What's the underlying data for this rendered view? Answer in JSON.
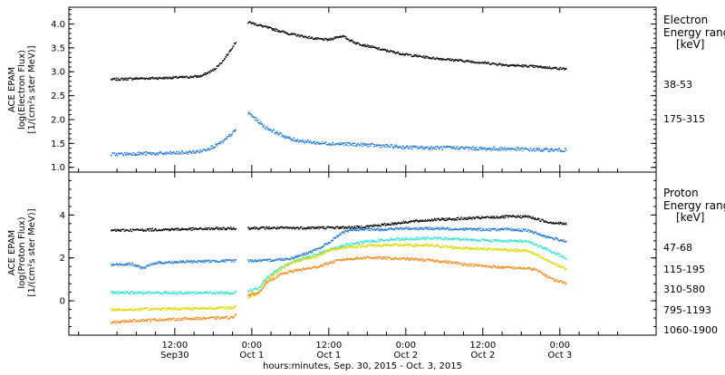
{
  "chart_data": [
    {
      "type": "scatter",
      "instrument": "ACE EPAM",
      "ylabel_line1": "ACE EPAM",
      "ylabel_line2": "log(Electron Flux)",
      "ylabel_line3": "[1/(cm²s ster MeV)]",
      "ylim": [
        0.9,
        4.35
      ],
      "yticks": [
        1.0,
        1.5,
        2.0,
        2.5,
        3.0,
        3.5,
        4.0
      ],
      "ytick_labels": [
        "1.0",
        "1.5",
        "2.0",
        "2.5",
        "3.0",
        "3.5",
        "4.0"
      ],
      "legend_title_line1": "Electron",
      "legend_title_line2": "Energy ranges",
      "legend_title_line3": "[keV]",
      "data_gap": [
        21.5,
        23.3
      ],
      "series": [
        {
          "name": "38-53",
          "color": "#000000",
          "points": [
            [
              2,
              2.85
            ],
            [
              6,
              2.87
            ],
            [
              10,
              2.88
            ],
            [
              14,
              2.9
            ],
            [
              16,
              2.92
            ],
            [
              18,
              3.05
            ],
            [
              19.5,
              3.25
            ],
            [
              21.5,
              3.65
            ],
            [
              23.4,
              4.05
            ],
            [
              26,
              3.95
            ],
            [
              30,
              3.8
            ],
            [
              34,
              3.7
            ],
            [
              36,
              3.68
            ],
            [
              37,
              3.73
            ],
            [
              38,
              3.76
            ],
            [
              40,
              3.62
            ],
            [
              44,
              3.48
            ],
            [
              48,
              3.37
            ],
            [
              52,
              3.3
            ],
            [
              56,
              3.25
            ],
            [
              60,
              3.2
            ],
            [
              64,
              3.15
            ],
            [
              68,
              3.12
            ],
            [
              70,
              3.1
            ],
            [
              73,
              3.07
            ]
          ]
        },
        {
          "name": "175-315",
          "color": "#1e78d2",
          "points": [
            [
              2,
              1.28
            ],
            [
              6,
              1.3
            ],
            [
              10,
              1.3
            ],
            [
              14,
              1.32
            ],
            [
              16,
              1.35
            ],
            [
              18,
              1.45
            ],
            [
              19.5,
              1.55
            ],
            [
              21.5,
              1.8
            ],
            [
              23.4,
              2.15
            ],
            [
              26,
              1.85
            ],
            [
              30,
              1.6
            ],
            [
              34,
              1.52
            ],
            [
              38,
              1.5
            ],
            [
              42,
              1.48
            ],
            [
              48,
              1.43
            ],
            [
              52,
              1.42
            ],
            [
              56,
              1.42
            ],
            [
              60,
              1.4
            ],
            [
              64,
              1.4
            ],
            [
              68,
              1.38
            ],
            [
              73,
              1.37
            ]
          ]
        }
      ]
    },
    {
      "type": "scatter",
      "instrument": "ACE EPAM",
      "ylabel_line1": "ACE EPAM",
      "ylabel_line2": "log(Proton Flux)",
      "ylabel_line3": "[1/(cm²s ster MeV)]",
      "ylim": [
        -1.6,
        6.0
      ],
      "yticks": [
        0,
        2,
        4
      ],
      "ytick_labels": [
        "0",
        "2",
        "4"
      ],
      "legend_title_line1": "Proton",
      "legend_title_line2": "Energy ranges",
      "legend_title_line3": "[keV]",
      "data_gap": [
        21.5,
        23.3
      ],
      "series": [
        {
          "name": "47-68",
          "color": "#000000",
          "points": [
            [
              2,
              3.3
            ],
            [
              10,
              3.35
            ],
            [
              21,
              3.4
            ],
            [
              23.4,
              3.42
            ],
            [
              30,
              3.42
            ],
            [
              40,
              3.45
            ],
            [
              44,
              3.55
            ],
            [
              48,
              3.7
            ],
            [
              52,
              3.8
            ],
            [
              56,
              3.85
            ],
            [
              60,
              3.9
            ],
            [
              64,
              3.95
            ],
            [
              67,
              3.95
            ],
            [
              70,
              3.7
            ],
            [
              73,
              3.6
            ]
          ]
        },
        {
          "name": "115-195",
          "color": "#1e78d2",
          "points": [
            [
              2,
              1.7
            ],
            [
              5,
              1.75
            ],
            [
              7,
              1.55
            ],
            [
              9,
              1.8
            ],
            [
              14,
              1.85
            ],
            [
              21,
              1.9
            ],
            [
              23.4,
              1.9
            ],
            [
              26,
              1.9
            ],
            [
              28,
              1.95
            ],
            [
              30,
              2.0
            ],
            [
              32,
              2.2
            ],
            [
              34,
              2.4
            ],
            [
              36,
              2.75
            ],
            [
              38,
              3.2
            ],
            [
              40,
              3.35
            ],
            [
              44,
              3.35
            ],
            [
              48,
              3.4
            ],
            [
              52,
              3.4
            ],
            [
              56,
              3.38
            ],
            [
              60,
              3.35
            ],
            [
              64,
              3.35
            ],
            [
              67,
              3.3
            ],
            [
              70,
              3.0
            ],
            [
              73,
              2.8
            ]
          ]
        },
        {
          "name": "310-580",
          "color": "#33e0d0",
          "points": [
            [
              2,
              0.4
            ],
            [
              10,
              0.4
            ],
            [
              21,
              0.4
            ],
            [
              23.4,
              0.5
            ],
            [
              25,
              0.6
            ],
            [
              26,
              1.0
            ],
            [
              28,
              1.5
            ],
            [
              30,
              1.8
            ],
            [
              34,
              2.2
            ],
            [
              38,
              2.6
            ],
            [
              42,
              2.8
            ],
            [
              46,
              2.9
            ],
            [
              52,
              2.95
            ],
            [
              56,
              2.9
            ],
            [
              60,
              2.85
            ],
            [
              64,
              2.82
            ],
            [
              67,
              2.8
            ],
            [
              70,
              2.4
            ],
            [
              73,
              2.0
            ]
          ]
        },
        {
          "name": "795-1193",
          "color": "#dada00",
          "points": [
            [
              2,
              -0.4
            ],
            [
              10,
              -0.35
            ],
            [
              21,
              -0.3
            ],
            [
              23.4,
              0.2
            ],
            [
              25,
              0.4
            ],
            [
              26,
              0.9
            ],
            [
              28,
              1.4
            ],
            [
              30,
              1.8
            ],
            [
              34,
              2.1
            ],
            [
              36,
              2.4
            ],
            [
              38,
              2.5
            ],
            [
              42,
              2.6
            ],
            [
              46,
              2.62
            ],
            [
              52,
              2.6
            ],
            [
              56,
              2.5
            ],
            [
              60,
              2.45
            ],
            [
              64,
              2.4
            ],
            [
              67,
              2.35
            ],
            [
              70,
              1.9
            ],
            [
              73,
              1.5
            ]
          ]
        },
        {
          "name": "1060-1900",
          "color": "#f08a1e",
          "points": [
            [
              2,
              -1.0
            ],
            [
              5,
              -0.9
            ],
            [
              10,
              -0.85
            ],
            [
              15,
              -0.8
            ],
            [
              21,
              -0.75
            ],
            [
              23.4,
              0.3
            ],
            [
              25,
              0.4
            ],
            [
              26,
              0.8
            ],
            [
              28,
              1.2
            ],
            [
              30,
              1.4
            ],
            [
              32,
              1.5
            ],
            [
              34,
              1.6
            ],
            [
              36,
              1.8
            ],
            [
              38,
              1.95
            ],
            [
              42,
              2.05
            ],
            [
              46,
              2.0
            ],
            [
              50,
              1.95
            ],
            [
              54,
              1.85
            ],
            [
              58,
              1.7
            ],
            [
              62,
              1.6
            ],
            [
              66,
              1.55
            ],
            [
              68,
              1.5
            ],
            [
              71,
              1.0
            ],
            [
              73,
              0.85
            ]
          ]
        }
      ]
    }
  ],
  "x_axis": {
    "xlim": [
      -4.5,
      87
    ],
    "title": "hours:minutes, Sep. 30, 2015 - Oct.  3, 2015",
    "major_ticks": [
      {
        "x": 12,
        "time": "12:00",
        "date": "Sep30"
      },
      {
        "x": 24,
        "time": "0:00",
        "date": "Oct 1"
      },
      {
        "x": 36,
        "time": "12:00",
        "date": "Oct 1"
      },
      {
        "x": 48,
        "time": "0:00",
        "date": "Oct 2"
      },
      {
        "x": 60,
        "time": "12:00",
        "date": "Oct 2"
      },
      {
        "x": 72,
        "time": "0:00",
        "date": "Oct 3"
      }
    ]
  }
}
